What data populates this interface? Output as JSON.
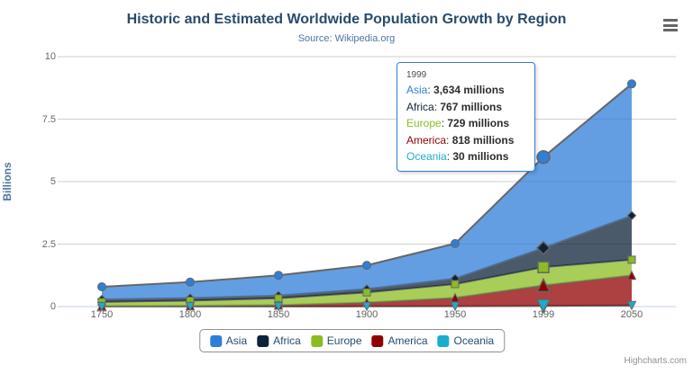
{
  "chart": {
    "title": "Historic and Estimated Worldwide Population Growth by Region",
    "subtitle": "Source: Wikipedia.org",
    "credits": "Highcharts.com"
  },
  "chart_data": {
    "type": "area",
    "stacking": "normal",
    "title": "Historic and Estimated Worldwide Population Growth by Region",
    "subtitle": "Source: Wikipedia.org",
    "categories": [
      "1750",
      "1800",
      "1850",
      "1900",
      "1950",
      "1999",
      "2050"
    ],
    "values_unit": "millions",
    "ylabel": "Billions",
    "yaxis_ticks": [
      0,
      2.5,
      5,
      7.5,
      10
    ],
    "ylim": [
      0,
      10
    ],
    "grid": true,
    "legend_position": "bottom",
    "line_color": "#666666",
    "fill_opacity": 0.75,
    "hover_category_index": 5,
    "series": [
      {
        "name": "Asia",
        "color": "#2f7ed8",
        "marker": "circle",
        "values": [
          502,
          635,
          809,
          947,
          1402,
          3634,
          5268
        ]
      },
      {
        "name": "Africa",
        "color": "#0d233a",
        "marker": "diamond",
        "values": [
          106,
          107,
          111,
          133,
          221,
          767,
          1766
        ]
      },
      {
        "name": "Europe",
        "color": "#8bbc21",
        "marker": "square",
        "values": [
          163,
          203,
          276,
          408,
          547,
          729,
          628
        ]
      },
      {
        "name": "America",
        "color": "#910000",
        "marker": "triangle",
        "values": [
          18,
          31,
          54,
          156,
          339,
          818,
          1201
        ]
      },
      {
        "name": "Oceania",
        "color": "#1aadce",
        "marker": "triangle-down",
        "values": [
          2,
          2,
          2,
          6,
          13,
          30,
          46
        ]
      }
    ]
  },
  "tooltip": {
    "header": "1999",
    "rows": [
      {
        "label": "Asia",
        "color": "#2f7ed8",
        "value": "3,634 millions"
      },
      {
        "label": "Africa",
        "color": "#0d233a",
        "value": "767 millions"
      },
      {
        "label": "Europe",
        "color": "#8bbc21",
        "value": "729 millions"
      },
      {
        "label": "America",
        "color": "#910000",
        "value": "818 millions"
      },
      {
        "label": "Oceania",
        "color": "#1aadce",
        "value": "30 millions"
      }
    ]
  },
  "colors": {
    "title": "#274b6d",
    "subtitle": "#4d759e",
    "axis_labels": "#606060",
    "grid_line": "#cfcfcf",
    "axis_line": "#c0d0e0",
    "series_line": "#666666",
    "tooltip_border": "#2f7ed8",
    "legend_border": "#909090",
    "credits_text": "#909090"
  }
}
